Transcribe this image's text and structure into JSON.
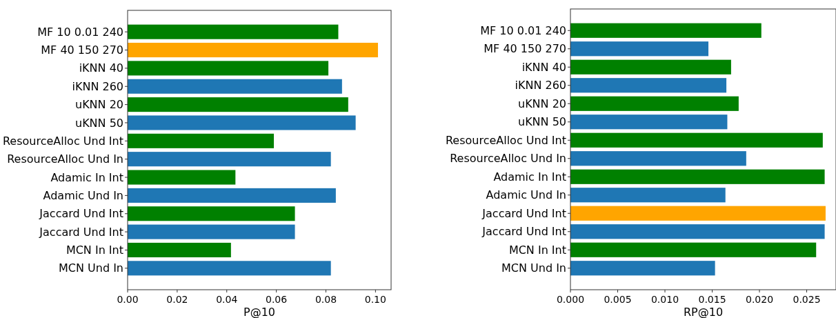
{
  "chart_data": [
    {
      "type": "bar",
      "orientation": "horizontal",
      "xlabel": "P@10",
      "categories": [
        "MF 10 0.01 240",
        "MF 40 150 270",
        "iKNN 40",
        "iKNN 260",
        "uKNN 20",
        "uKNN 50",
        "ResourceAlloc Und Int",
        "ResourceAlloc Und In",
        "Adamic In Int",
        "Adamic Und In",
        "Jaccard  Und Int",
        "Jaccard Und Int",
        "MCN In Int",
        "MCN Und In"
      ],
      "values": [
        0.085,
        0.101,
        0.081,
        0.0865,
        0.089,
        0.092,
        0.059,
        0.082,
        0.0435,
        0.084,
        0.0675,
        0.0675,
        0.0417,
        0.082
      ],
      "colors": [
        "#008000",
        "#ffa500",
        "#008000",
        "#1f77b4",
        "#008000",
        "#1f77b4",
        "#008000",
        "#1f77b4",
        "#008000",
        "#1f77b4",
        "#008000",
        "#1f77b4",
        "#008000",
        "#1f77b4"
      ],
      "xlim": [
        0,
        0.1063
      ],
      "xticks": [
        {
          "value": 0,
          "label": "0.00"
        },
        0.02,
        0.04,
        0.06,
        0.08,
        {
          "value": 0.1,
          "label": "0.10"
        }
      ],
      "grid": false
    },
    {
      "type": "bar",
      "orientation": "horizontal",
      "xlabel": "RP@10",
      "categories": [
        "MF 10 0.01 240",
        "MF 40 150 270",
        "iKNN 40",
        "iKNN 260",
        "uKNN 20",
        "uKNN 50",
        "ResourceAlloc Und Int",
        "ResourceAlloc Und In",
        "Adamic In Int",
        "Adamic Und In",
        "Jaccard  Und Int",
        "Jaccard Und Int",
        "MCN In Int",
        "MCN Und In"
      ],
      "values": [
        0.0202,
        0.0146,
        0.017,
        0.0165,
        0.0178,
        0.0166,
        0.0267,
        0.0186,
        0.0269,
        0.0164,
        0.027,
        0.0269,
        0.026,
        0.0153
      ],
      "colors": [
        "#008000",
        "#1f77b4",
        "#008000",
        "#1f77b4",
        "#008000",
        "#1f77b4",
        "#008000",
        "#1f77b4",
        "#008000",
        "#1f77b4",
        "#ffa500",
        "#1f77b4",
        "#008000",
        "#1f77b4"
      ],
      "xlim": [
        0,
        0.0281
      ],
      "xticks": [
        {
          "value": 0,
          "label": "0.000"
        },
        0.005,
        {
          "value": 0.01,
          "label": "0.010"
        },
        0.015,
        {
          "value": 0.02,
          "label": "0.020"
        },
        0.025
      ],
      "grid": false
    }
  ]
}
